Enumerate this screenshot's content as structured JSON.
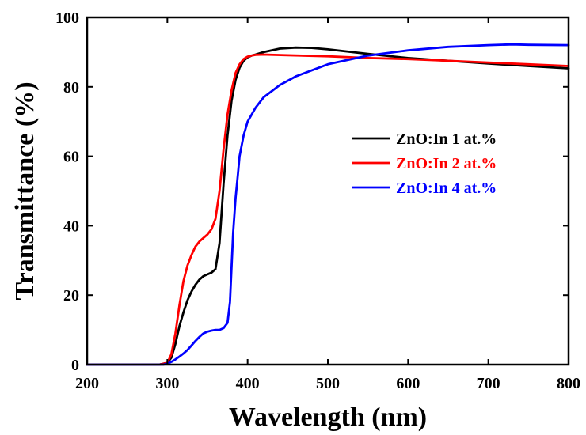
{
  "chart_data": {
    "type": "line",
    "xlabel": "Wavelength (nm)",
    "ylabel": "Transmittance (%)",
    "xlim": [
      200,
      800
    ],
    "ylim": [
      0,
      100
    ],
    "xticks": [
      200,
      300,
      400,
      500,
      600,
      700,
      800
    ],
    "yticks": [
      0,
      20,
      40,
      60,
      80,
      100
    ],
    "grid": false,
    "legend_position": "center-right",
    "series": [
      {
        "name": "ZnO:In 1 at.%",
        "color": "#000000",
        "x": [
          200,
          290,
          300,
          305,
          310,
          315,
          320,
          325,
          330,
          335,
          340,
          345,
          350,
          355,
          360,
          365,
          370,
          375,
          380,
          385,
          390,
          395,
          400,
          405,
          410,
          420,
          440,
          460,
          480,
          500,
          550,
          600,
          650,
          700,
          750,
          800
        ],
        "y": [
          0,
          0,
          0.5,
          2,
          6,
          11,
          15,
          18.5,
          21,
          23,
          24.5,
          25.5,
          26,
          26.5,
          27.5,
          35,
          52,
          66,
          76,
          82,
          85.5,
          87.5,
          88.5,
          89,
          89.3,
          90,
          91,
          91.3,
          91.2,
          90.8,
          89.5,
          88.3,
          87.5,
          86.7,
          86,
          85.3
        ]
      },
      {
        "name": "ZnO:In 2 at.%",
        "color": "#ff0000",
        "x": [
          200,
          290,
          300,
          305,
          310,
          315,
          320,
          325,
          330,
          335,
          340,
          345,
          350,
          355,
          360,
          365,
          370,
          375,
          380,
          385,
          390,
          395,
          400,
          405,
          410,
          420,
          450,
          500,
          550,
          600,
          650,
          700,
          750,
          800
        ],
        "y": [
          0,
          0,
          0.5,
          3,
          9,
          17,
          24,
          28.5,
          31.5,
          34,
          35.5,
          36.5,
          37.5,
          39,
          42,
          50,
          62,
          72,
          79,
          84,
          86.5,
          88,
          88.7,
          89,
          89.2,
          89.3,
          89.1,
          88.8,
          88.3,
          88,
          87.5,
          87,
          86.5,
          86
        ]
      },
      {
        "name": "ZnO:In 4 at.%",
        "color": "#0000ff",
        "x": [
          200,
          295,
          300,
          305,
          310,
          315,
          320,
          325,
          330,
          335,
          340,
          345,
          350,
          355,
          360,
          365,
          370,
          375,
          378,
          380,
          382,
          385,
          388,
          390,
          395,
          400,
          410,
          420,
          440,
          460,
          500,
          550,
          600,
          650,
          700,
          730,
          750,
          800
        ],
        "y": [
          0,
          0,
          0.3,
          0.8,
          1.5,
          2.3,
          3.2,
          4.2,
          5.5,
          6.8,
          8,
          9,
          9.5,
          9.8,
          10,
          10,
          10.5,
          12,
          18,
          28,
          38,
          48,
          55,
          60,
          66,
          70,
          74,
          77,
          80.5,
          83,
          86.5,
          89,
          90.5,
          91.5,
          92,
          92.2,
          92.1,
          92
        ]
      }
    ]
  }
}
